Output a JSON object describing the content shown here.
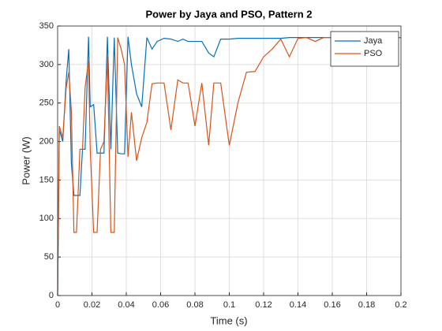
{
  "chart_data": {
    "type": "line",
    "title": "Power by Jaya and PSO, Pattern 2",
    "xlabel": "Time (s)",
    "ylabel": "Power (W)",
    "x": [
      0,
      0.001,
      0.003,
      0.005,
      0.0065,
      0.008,
      0.0095,
      0.011,
      0.013,
      0.0145,
      0.016,
      0.018,
      0.019,
      0.021,
      0.023,
      0.025,
      0.027,
      0.029,
      0.031,
      0.033,
      0.035,
      0.037,
      0.039,
      0.041,
      0.043,
      0.046,
      0.049,
      0.052,
      0.055,
      0.058,
      0.062,
      0.066,
      0.07,
      0.073,
      0.076,
      0.08,
      0.084,
      0.088,
      0.091,
      0.095,
      0.1,
      0.105,
      0.11,
      0.115,
      0.12,
      0.125,
      0.13,
      0.135,
      0.14,
      0.145,
      0.15,
      0.155,
      0.16,
      0.17,
      0.18,
      0.19,
      0.2
    ],
    "series": [
      {
        "name": "Jaya",
        "color": "#0072BD",
        "values": [
          0,
          215,
          200,
          280,
          320,
          172,
          130,
          130,
          130,
          190,
          190,
          336,
          245,
          248,
          185,
          185,
          185,
          336,
          190,
          335,
          185,
          184,
          184,
          336,
          300,
          262,
          245,
          335,
          320,
          330,
          334,
          333,
          330,
          333,
          330,
          330,
          330,
          315,
          310,
          333,
          333,
          334,
          334,
          334,
          334,
          334,
          334,
          335,
          335,
          335,
          335,
          335,
          335,
          335,
          335,
          335,
          335
        ]
      },
      {
        "name": "PSO",
        "color": "#D95319",
        "values": [
          0,
          220,
          205,
          270,
          290,
          240,
          82,
          82,
          190,
          190,
          270,
          305,
          190,
          82,
          82,
          190,
          200,
          310,
          82,
          82,
          335,
          320,
          300,
          180,
          238,
          175,
          205,
          225,
          275,
          276,
          276,
          215,
          280,
          276,
          276,
          220,
          276,
          195,
          276,
          276,
          195,
          250,
          290,
          291,
          310,
          320,
          333,
          310,
          334,
          335,
          330,
          335,
          335,
          335,
          335,
          335,
          335
        ]
      }
    ],
    "xlim": [
      0,
      0.2
    ],
    "xticks": [
      0,
      0.02,
      0.04,
      0.06,
      0.08,
      0.1,
      0.12,
      0.14,
      0.16,
      0.18,
      0.2
    ],
    "ylim": [
      0,
      350
    ],
    "yticks": [
      0,
      50,
      100,
      150,
      200,
      250,
      300,
      350
    ],
    "grid": true,
    "legend": "northeast"
  }
}
